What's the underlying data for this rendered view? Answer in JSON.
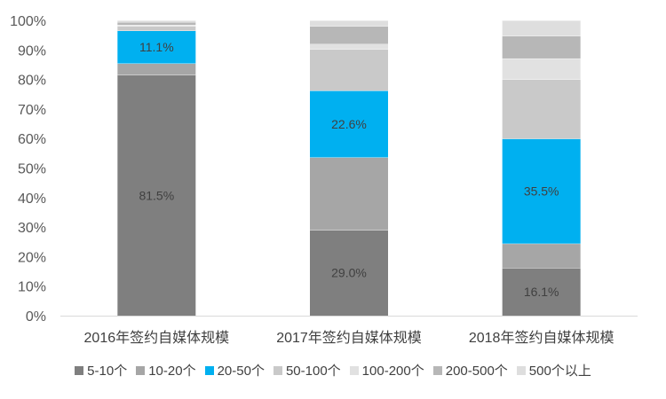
{
  "chart_data": {
    "type": "bar",
    "stacked": true,
    "percent_stacked": true,
    "categories": [
      "2016年签约自媒体规模",
      "2017年签约自媒体规模",
      "2018年签约自媒体规模"
    ],
    "y_ticks": [
      "0%",
      "10%",
      "20%",
      "30%",
      "40%",
      "50%",
      "60%",
      "70%",
      "80%",
      "90%",
      "100%"
    ],
    "ylim": [
      0,
      100
    ],
    "legend_position": "bottom",
    "series": [
      {
        "name": "5-10个",
        "color": "#7f7f7f",
        "values": [
          81.5,
          29.0,
          16.1
        ],
        "labels": [
          "81.5%",
          "29.0%",
          "16.1%"
        ]
      },
      {
        "name": "10-20个",
        "color": "#a6a6a6",
        "values": [
          3.9,
          24.6,
          8.3
        ],
        "labels": [
          "",
          "",
          ""
        ]
      },
      {
        "name": "20-50个",
        "color": "#00b0f0",
        "values": [
          11.1,
          22.6,
          35.5
        ],
        "labels": [
          "11.1%",
          "22.6%",
          "35.5%"
        ]
      },
      {
        "name": "50-100个",
        "color": "#c9c9c9",
        "values": [
          1.5,
          14.0,
          20.1
        ],
        "labels": [
          "",
          "",
          ""
        ]
      },
      {
        "name": "100-200个",
        "color": "#e1e1e1",
        "values": [
          0.5,
          1.8,
          7.1
        ],
        "labels": [
          "",
          "",
          ""
        ]
      },
      {
        "name": "200-500个",
        "color": "#b7b7b7",
        "values": [
          0.9,
          6.0,
          7.6
        ],
        "labels": [
          "",
          "",
          ""
        ]
      },
      {
        "name": "500个以上",
        "color": "#dedede",
        "values": [
          0.6,
          2.0,
          5.3
        ],
        "labels": [
          "",
          "",
          ""
        ]
      }
    ]
  }
}
